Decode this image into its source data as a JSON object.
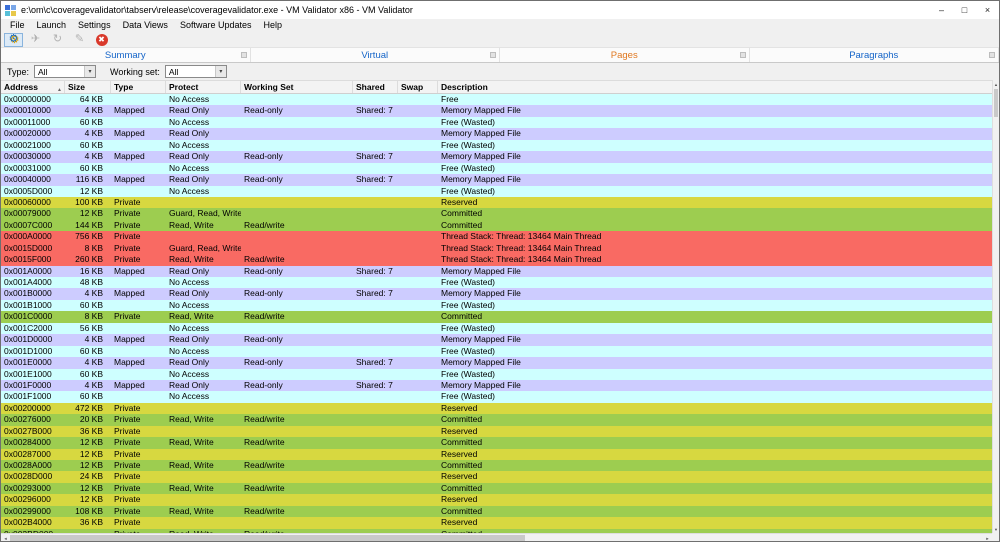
{
  "window": {
    "title": "e:\\om\\c\\coveragevalidator\\tabserv\\release\\coveragevalidator.exe - VM Validator x86 - VM Validator",
    "minimize_glyph": "–",
    "maximize_glyph": "□",
    "close_glyph": "×"
  },
  "menu": {
    "items": [
      "File",
      "Launch",
      "Settings",
      "Data Views",
      "Software Updates",
      "Help"
    ]
  },
  "toolbar": {
    "buttons": [
      {
        "name": "settings-button",
        "glyph": "⚙",
        "kind": "active"
      },
      {
        "name": "launch-button",
        "glyph": "✈",
        "kind": "disabled"
      },
      {
        "name": "relaunch-button",
        "glyph": "↻",
        "kind": "disabled"
      },
      {
        "name": "edit-button",
        "glyph": "✎",
        "kind": "disabled"
      },
      {
        "name": "stop-button",
        "glyph": "✖",
        "kind": "stop"
      }
    ]
  },
  "tabs": [
    {
      "label": "Summary",
      "active": false
    },
    {
      "label": "Virtual",
      "active": false
    },
    {
      "label": "Pages",
      "active": true
    },
    {
      "label": "Paragraphs",
      "active": false
    }
  ],
  "filters": {
    "type_label": "Type:",
    "type_value": "All",
    "working_set_label": "Working set:",
    "working_set_value": "All"
  },
  "table": {
    "columns": [
      "Address",
      "Size",
      "Type",
      "Protect",
      "Working Set",
      "Shared",
      "Swap",
      "Description"
    ],
    "sort_glyph": "▲",
    "rows": [
      {
        "address": "0x00000000",
        "size": "64 KB",
        "type": "",
        "protect": "No Access",
        "working_set": "",
        "shared": "",
        "swap": "",
        "description": "Free",
        "kind": "free"
      },
      {
        "address": "0x00010000",
        "size": "4 KB",
        "type": "Mapped",
        "protect": "Read Only",
        "working_set": "Read-only",
        "shared": "Shared: 7",
        "swap": "",
        "description": "Memory Mapped File",
        "kind": "mapped"
      },
      {
        "address": "0x00011000",
        "size": "60 KB",
        "type": "",
        "protect": "No Access",
        "working_set": "",
        "shared": "",
        "swap": "",
        "description": "Free (Wasted)",
        "kind": "free"
      },
      {
        "address": "0x00020000",
        "size": "4 KB",
        "type": "Mapped",
        "protect": "Read Only",
        "working_set": "",
        "shared": "",
        "swap": "",
        "description": "Memory Mapped File",
        "kind": "mapped"
      },
      {
        "address": "0x00021000",
        "size": "60 KB",
        "type": "",
        "protect": "No Access",
        "working_set": "",
        "shared": "",
        "swap": "",
        "description": "Free (Wasted)",
        "kind": "free"
      },
      {
        "address": "0x00030000",
        "size": "4 KB",
        "type": "Mapped",
        "protect": "Read Only",
        "working_set": "Read-only",
        "shared": "Shared: 7",
        "swap": "",
        "description": "Memory Mapped File",
        "kind": "mapped"
      },
      {
        "address": "0x00031000",
        "size": "60 KB",
        "type": "",
        "protect": "No Access",
        "working_set": "",
        "shared": "",
        "swap": "",
        "description": "Free (Wasted)",
        "kind": "free"
      },
      {
        "address": "0x00040000",
        "size": "116 KB",
        "type": "Mapped",
        "protect": "Read Only",
        "working_set": "Read-only",
        "shared": "Shared: 7",
        "swap": "",
        "description": "Memory Mapped File",
        "kind": "mapped"
      },
      {
        "address": "0x0005D000",
        "size": "12 KB",
        "type": "",
        "protect": "No Access",
        "working_set": "",
        "shared": "",
        "swap": "",
        "description": "Free (Wasted)",
        "kind": "free"
      },
      {
        "address": "0x00060000",
        "size": "100 KB",
        "type": "Private",
        "protect": "",
        "working_set": "",
        "shared": "",
        "swap": "",
        "description": "Reserved",
        "kind": "reserved"
      },
      {
        "address": "0x00079000",
        "size": "12 KB",
        "type": "Private",
        "protect": "Guard, Read, Write",
        "working_set": "",
        "shared": "",
        "swap": "",
        "description": "Committed",
        "kind": "committed"
      },
      {
        "address": "0x0007C000",
        "size": "144 KB",
        "type": "Private",
        "protect": "Read, Write",
        "working_set": "Read/write",
        "shared": "",
        "swap": "",
        "description": "Committed",
        "kind": "committed"
      },
      {
        "address": "0x000A0000",
        "size": "756 KB",
        "type": "Private",
        "protect": "",
        "working_set": "",
        "shared": "",
        "swap": "",
        "description": "Thread Stack: Thread: 13464 Main Thread",
        "kind": "stack"
      },
      {
        "address": "0x0015D000",
        "size": "8 KB",
        "type": "Private",
        "protect": "Guard, Read, Write",
        "working_set": "",
        "shared": "",
        "swap": "",
        "description": "Thread Stack: Thread: 13464 Main Thread",
        "kind": "stack"
      },
      {
        "address": "0x0015F000",
        "size": "260 KB",
        "type": "Private",
        "protect": "Read, Write",
        "working_set": "Read/write",
        "shared": "",
        "swap": "",
        "description": "Thread Stack: Thread: 13464 Main Thread",
        "kind": "stack"
      },
      {
        "address": "0x001A0000",
        "size": "16 KB",
        "type": "Mapped",
        "protect": "Read Only",
        "working_set": "Read-only",
        "shared": "Shared: 7",
        "swap": "",
        "description": "Memory Mapped File",
        "kind": "mapped"
      },
      {
        "address": "0x001A4000",
        "size": "48 KB",
        "type": "",
        "protect": "No Access",
        "working_set": "",
        "shared": "",
        "swap": "",
        "description": "Free (Wasted)",
        "kind": "free"
      },
      {
        "address": "0x001B0000",
        "size": "4 KB",
        "type": "Mapped",
        "protect": "Read Only",
        "working_set": "Read-only",
        "shared": "Shared: 7",
        "swap": "",
        "description": "Memory Mapped File",
        "kind": "mapped"
      },
      {
        "address": "0x001B1000",
        "size": "60 KB",
        "type": "",
        "protect": "No Access",
        "working_set": "",
        "shared": "",
        "swap": "",
        "description": "Free (Wasted)",
        "kind": "free"
      },
      {
        "address": "0x001C0000",
        "size": "8 KB",
        "type": "Private",
        "protect": "Read, Write",
        "working_set": "Read/write",
        "shared": "",
        "swap": "",
        "description": "Committed",
        "kind": "committed"
      },
      {
        "address": "0x001C2000",
        "size": "56 KB",
        "type": "",
        "protect": "No Access",
        "working_set": "",
        "shared": "",
        "swap": "",
        "description": "Free (Wasted)",
        "kind": "free"
      },
      {
        "address": "0x001D0000",
        "size": "4 KB",
        "type": "Mapped",
        "protect": "Read Only",
        "working_set": "Read-only",
        "shared": "",
        "swap": "",
        "description": "Memory Mapped File",
        "kind": "mapped"
      },
      {
        "address": "0x001D1000",
        "size": "60 KB",
        "type": "",
        "protect": "No Access",
        "working_set": "",
        "shared": "",
        "swap": "",
        "description": "Free (Wasted)",
        "kind": "free"
      },
      {
        "address": "0x001E0000",
        "size": "4 KB",
        "type": "Mapped",
        "protect": "Read Only",
        "working_set": "Read-only",
        "shared": "Shared: 7",
        "swap": "",
        "description": "Memory Mapped File",
        "kind": "mapped"
      },
      {
        "address": "0x001E1000",
        "size": "60 KB",
        "type": "",
        "protect": "No Access",
        "working_set": "",
        "shared": "",
        "swap": "",
        "description": "Free (Wasted)",
        "kind": "free"
      },
      {
        "address": "0x001F0000",
        "size": "4 KB",
        "type": "Mapped",
        "protect": "Read Only",
        "working_set": "Read-only",
        "shared": "Shared: 7",
        "swap": "",
        "description": "Memory Mapped File",
        "kind": "mapped"
      },
      {
        "address": "0x001F1000",
        "size": "60 KB",
        "type": "",
        "protect": "No Access",
        "working_set": "",
        "shared": "",
        "swap": "",
        "description": "Free (Wasted)",
        "kind": "free"
      },
      {
        "address": "0x00200000",
        "size": "472 KB",
        "type": "Private",
        "protect": "",
        "working_set": "",
        "shared": "",
        "swap": "",
        "description": "Reserved",
        "kind": "reserved"
      },
      {
        "address": "0x00276000",
        "size": "20 KB",
        "type": "Private",
        "protect": "Read, Write",
        "working_set": "Read/write",
        "shared": "",
        "swap": "",
        "description": "Committed",
        "kind": "committed"
      },
      {
        "address": "0x0027B000",
        "size": "36 KB",
        "type": "Private",
        "protect": "",
        "working_set": "",
        "shared": "",
        "swap": "",
        "description": "Reserved",
        "kind": "reserved"
      },
      {
        "address": "0x00284000",
        "size": "12 KB",
        "type": "Private",
        "protect": "Read, Write",
        "working_set": "Read/write",
        "shared": "",
        "swap": "",
        "description": "Committed",
        "kind": "committed"
      },
      {
        "address": "0x00287000",
        "size": "12 KB",
        "type": "Private",
        "protect": "",
        "working_set": "",
        "shared": "",
        "swap": "",
        "description": "Reserved",
        "kind": "reserved"
      },
      {
        "address": "0x0028A000",
        "size": "12 KB",
        "type": "Private",
        "protect": "Read, Write",
        "working_set": "Read/write",
        "shared": "",
        "swap": "",
        "description": "Committed",
        "kind": "committed"
      },
      {
        "address": "0x0028D000",
        "size": "24 KB",
        "type": "Private",
        "protect": "",
        "working_set": "",
        "shared": "",
        "swap": "",
        "description": "Reserved",
        "kind": "reserved"
      },
      {
        "address": "0x00293000",
        "size": "12 KB",
        "type": "Private",
        "protect": "Read, Write",
        "working_set": "Read/write",
        "shared": "",
        "swap": "",
        "description": "Committed",
        "kind": "committed"
      },
      {
        "address": "0x00296000",
        "size": "12 KB",
        "type": "Private",
        "protect": "",
        "working_set": "",
        "shared": "",
        "swap": "",
        "description": "Reserved",
        "kind": "reserved"
      },
      {
        "address": "0x00299000",
        "size": "108 KB",
        "type": "Private",
        "protect": "Read, Write",
        "working_set": "Read/write",
        "shared": "",
        "swap": "",
        "description": "Committed",
        "kind": "committed"
      },
      {
        "address": "0x002B4000",
        "size": "36 KB",
        "type": "Private",
        "protect": "",
        "working_set": "",
        "shared": "",
        "swap": "",
        "description": "Reserved",
        "kind": "reserved"
      },
      {
        "address": "0x002BD000",
        "size": "",
        "type": "Private",
        "protect": "Read, Write",
        "working_set": "Read/write",
        "shared": "",
        "swap": "",
        "description": "Committed",
        "kind": "committed"
      }
    ]
  },
  "colors": {
    "free": "#ceffff",
    "mapped": "#cdccff",
    "committed": "#9dcd50",
    "reserved": "#d7d840",
    "stack": "#f96a63",
    "tab_active": "#e07820",
    "tab_inactive": "#1464c8"
  },
  "scrollbar": {
    "left_arrow": "◄",
    "right_arrow": "►",
    "up_arrow": "▲",
    "down_arrow": "▼"
  }
}
